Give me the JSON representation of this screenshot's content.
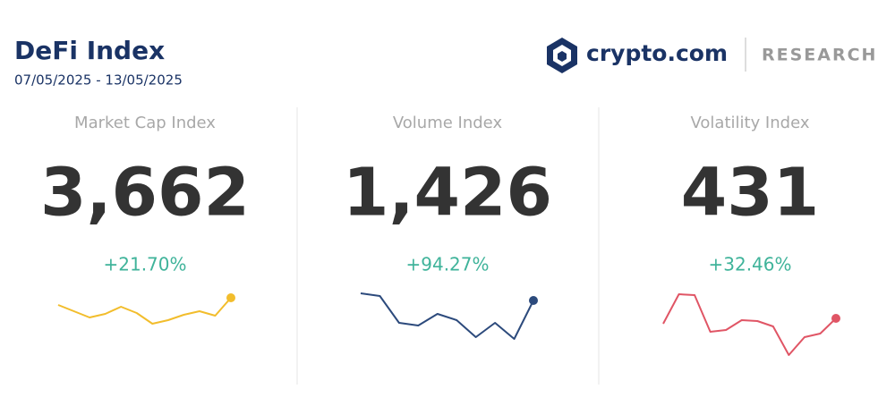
{
  "header": {
    "title": "DeFi Index",
    "date_range": "07/05/2025 - 13/05/2025",
    "brand": "crypto.com",
    "section": "RESEARCH"
  },
  "cards": [
    {
      "label": "Market Cap Index",
      "value": "3,662",
      "change": "+21.70%",
      "sparkline": {
        "type": "line",
        "color": "#f2bd2c",
        "values": [
          59,
          52,
          45,
          49,
          57,
          50,
          38,
          42,
          48,
          52,
          47,
          67
        ]
      }
    },
    {
      "label": "Volume Index",
      "value": "1,426",
      "change": "+94.27%",
      "sparkline": {
        "type": "line",
        "color": "#2c4a7c",
        "values": [
          72,
          69,
          39,
          36,
          49,
          42,
          23,
          39,
          21,
          64
        ]
      }
    },
    {
      "label": "Volatility Index",
      "value": "431",
      "change": "+32.46%",
      "sparkline": {
        "type": "line",
        "color": "#e05565",
        "values": [
          38,
          71,
          70,
          29,
          31,
          42,
          41,
          35,
          3,
          23,
          27,
          44
        ]
      }
    }
  ]
}
